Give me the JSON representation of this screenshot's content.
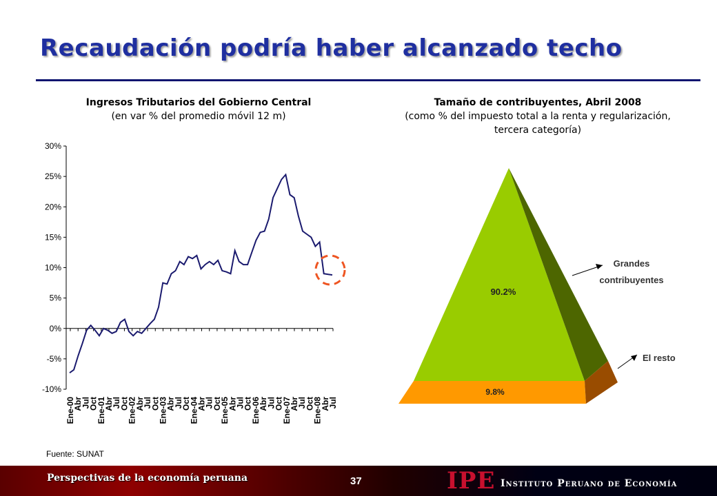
{
  "slide": {
    "title": "Recaudación podría haber alcanzado techo",
    "source": "Fuente: SUNAT",
    "footer_text": "Perspectivas de la economía peruana",
    "page_number": "37",
    "logo_mark": "IPE",
    "logo_name": "Instituto Peruano de Economía"
  },
  "left_chart": {
    "title": "Ingresos Tributarios del Gobierno Central",
    "subtitle": "(en var % del promedio móvil 12 m)"
  },
  "right_chart": {
    "title": "Tamaño de contribuyentes, Abril 2008",
    "subtitle": "(como % del impuesto total a la renta y regularización, tercera categoría)"
  },
  "colors": {
    "title": "#1f2fa0",
    "line": "#1a1a6e",
    "circle": "#ee5522",
    "pyramid_top": "#99cc00",
    "pyramid_top_side": "#4d6600",
    "pyramid_bottom": "#ff9900",
    "pyramid_bottom_side": "#994c00"
  },
  "chart_data": [
    {
      "type": "line",
      "ylim": [
        -10,
        30
      ],
      "yticks": [
        -10,
        -5,
        0,
        5,
        10,
        15,
        20,
        25,
        30
      ],
      "ytick_labels": [
        "-10%",
        "-5%",
        "0%",
        "5%",
        "10%",
        "15%",
        "20%",
        "25%",
        "30%"
      ],
      "xtick_labels": [
        "Ene-00",
        "Abr",
        "Jul",
        "Oct",
        "Ene-01",
        "Abr",
        "Jul",
        "Oct",
        "Ene-02",
        "Abr",
        "Jul",
        "Oct",
        "Ene-03",
        "Abr",
        "Jul",
        "Oct",
        "Ene-04",
        "Abr",
        "Jul",
        "Oct",
        "Ene-05",
        "Abr",
        "Jul",
        "Oct",
        "Ene-06",
        "Abr",
        "Jul",
        "Oct",
        "Ene-07",
        "Abr",
        "Jul",
        "Oct",
        "Ene-08",
        "Abr",
        "Jul"
      ],
      "grid": false,
      "series": [
        {
          "values": [
            -7.3,
            -6.8,
            -4.5,
            -2.5,
            -0.3,
            0.5,
            -0.3,
            -1.2,
            0.0,
            -0.3,
            -0.8,
            -0.5,
            1.0,
            1.5,
            -0.5,
            -1.2,
            -0.5,
            -0.8,
            0.0,
            0.8,
            1.5,
            3.5,
            7.5,
            7.3,
            9.0,
            9.5,
            11.0,
            10.5,
            11.8,
            11.5,
            12.0,
            9.8,
            10.5,
            11.0,
            10.5,
            11.2,
            9.5,
            9.3,
            9.0,
            12.8,
            11.0,
            10.5,
            10.5,
            12.5,
            14.5,
            15.8,
            16.0,
            18.0,
            21.5,
            23.0,
            24.5,
            25.3,
            22.0,
            21.5,
            18.5,
            16.0,
            15.5,
            15.0,
            13.5,
            14.2,
            9.0,
            8.9,
            8.8
          ]
        }
      ],
      "highlight": "dashed circle around last values"
    },
    {
      "type": "pyramid",
      "segments": [
        {
          "name": "Grandes contribuyentes",
          "value": 90.2,
          "label": "90.2%"
        },
        {
          "name": "El resto",
          "value": 9.8,
          "label": "9.8%"
        }
      ]
    }
  ]
}
